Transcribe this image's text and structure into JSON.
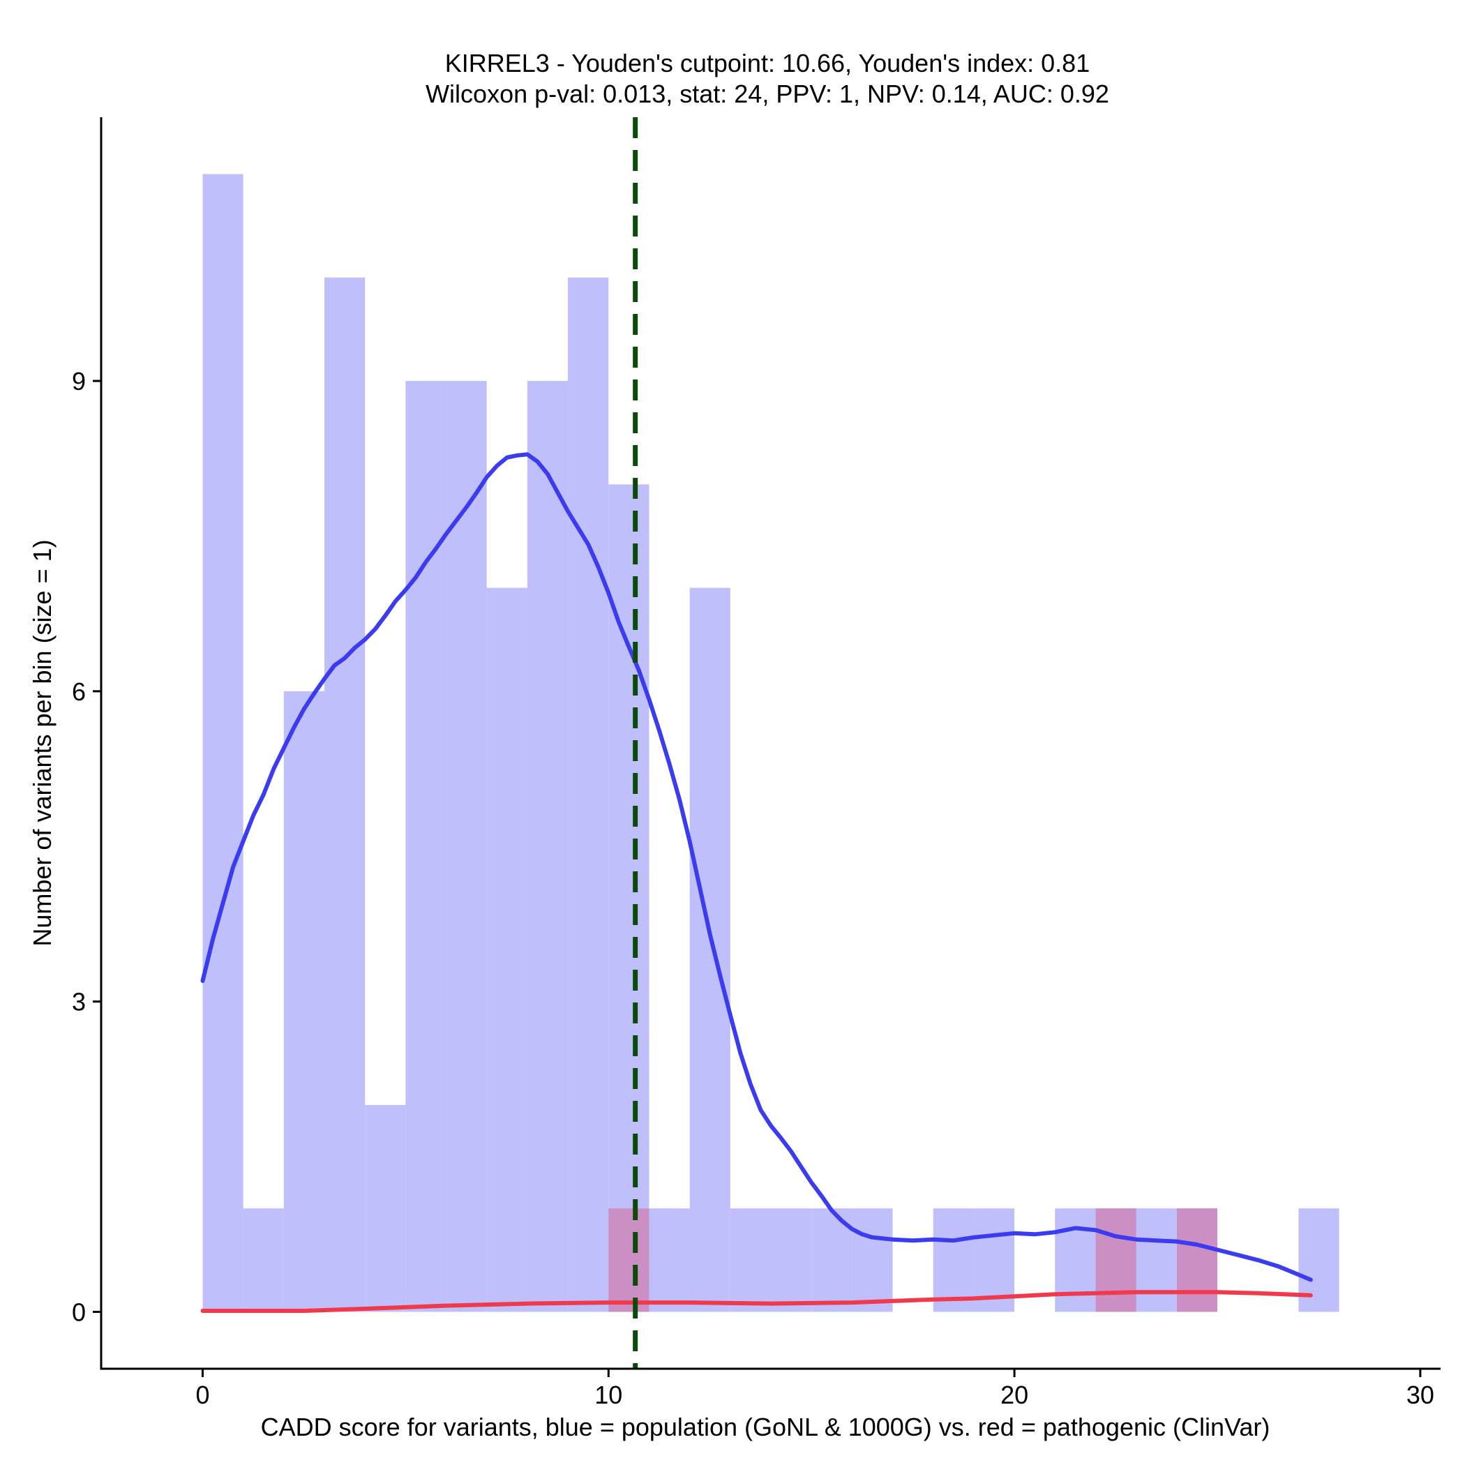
{
  "chart_data": {
    "type": "bar",
    "title_line1": "KIRREL3 - Youden's cutpoint: 10.66, Youden's index: 0.81",
    "title_line2": "Wilcoxon p-val: 0.013, stat: 24, PPV: 1, NPV: 0.14, AUC: 0.92",
    "xlabel": "CADD score for variants, blue = population (GoNL & 1000G) vs. red = pathogenic (ClinVar)",
    "ylabel": "Number of variants per bin (size = 1)",
    "xlim": [
      -2.5,
      30.5
    ],
    "ylim": [
      -0.55,
      11.55
    ],
    "x_ticks": [
      0,
      10,
      20,
      30
    ],
    "y_ticks": [
      0,
      3,
      6,
      9
    ],
    "bin_width": 1,
    "cutpoint": 10.66,
    "colors": {
      "population_fill": "#bfbffc",
      "pathogenic_fill": "#cc8fc4",
      "population_line": "#3b3bf0",
      "pathogenic_line": "#f03a4c",
      "cutpoint_line": "#0b4a0b"
    },
    "series": [
      {
        "name": "population (GoNL & 1000G)",
        "bins": [
          {
            "start": 0,
            "count": 11
          },
          {
            "start": 1,
            "count": 1
          },
          {
            "start": 2,
            "count": 6
          },
          {
            "start": 3,
            "count": 10
          },
          {
            "start": 4,
            "count": 2
          },
          {
            "start": 5,
            "count": 9
          },
          {
            "start": 6,
            "count": 9
          },
          {
            "start": 7,
            "count": 7
          },
          {
            "start": 8,
            "count": 9
          },
          {
            "start": 9,
            "count": 10
          },
          {
            "start": 10,
            "count": 8
          },
          {
            "start": 11,
            "count": 1
          },
          {
            "start": 12,
            "count": 7
          },
          {
            "start": 13,
            "count": 1
          },
          {
            "start": 14,
            "count": 1
          },
          {
            "start": 15,
            "count": 1
          },
          {
            "start": 16,
            "count": 1
          },
          {
            "start": 17,
            "count": 0
          },
          {
            "start": 18,
            "count": 1
          },
          {
            "start": 19,
            "count": 1
          },
          {
            "start": 20,
            "count": 0
          },
          {
            "start": 21,
            "count": 1
          },
          {
            "start": 22,
            "count": 1
          },
          {
            "start": 23,
            "count": 1
          },
          {
            "start": 24,
            "count": 1
          },
          {
            "start": 25,
            "count": 0
          },
          {
            "start": 26,
            "count": 0
          },
          {
            "start": 27,
            "count": 1
          }
        ],
        "density": [
          [
            0,
            3.2
          ],
          [
            0.25,
            3.6
          ],
          [
            0.5,
            3.95
          ],
          [
            0.75,
            4.3
          ],
          [
            1,
            4.55
          ],
          [
            1.25,
            4.8
          ],
          [
            1.5,
            5.0
          ],
          [
            1.75,
            5.25
          ],
          [
            2,
            5.45
          ],
          [
            2.25,
            5.65
          ],
          [
            2.5,
            5.83
          ],
          [
            2.75,
            5.98
          ],
          [
            3,
            6.12
          ],
          [
            3.25,
            6.25
          ],
          [
            3.5,
            6.32
          ],
          [
            3.75,
            6.42
          ],
          [
            4,
            6.5
          ],
          [
            4.25,
            6.6
          ],
          [
            4.5,
            6.73
          ],
          [
            4.75,
            6.87
          ],
          [
            5,
            6.98
          ],
          [
            5.25,
            7.1
          ],
          [
            5.5,
            7.25
          ],
          [
            5.75,
            7.38
          ],
          [
            6,
            7.52
          ],
          [
            6.25,
            7.65
          ],
          [
            6.5,
            7.78
          ],
          [
            6.75,
            7.92
          ],
          [
            7,
            8.07
          ],
          [
            7.25,
            8.18
          ],
          [
            7.5,
            8.26
          ],
          [
            7.75,
            8.28
          ],
          [
            8,
            8.29
          ],
          [
            8.25,
            8.22
          ],
          [
            8.5,
            8.1
          ],
          [
            8.75,
            7.92
          ],
          [
            9,
            7.74
          ],
          [
            9.25,
            7.58
          ],
          [
            9.5,
            7.42
          ],
          [
            9.75,
            7.2
          ],
          [
            10,
            6.95
          ],
          [
            10.25,
            6.67
          ],
          [
            10.5,
            6.43
          ],
          [
            10.75,
            6.2
          ],
          [
            11,
            5.92
          ],
          [
            11.25,
            5.62
          ],
          [
            11.5,
            5.3
          ],
          [
            11.75,
            4.95
          ],
          [
            12,
            4.55
          ],
          [
            12.25,
            4.1
          ],
          [
            12.5,
            3.65
          ],
          [
            12.75,
            3.25
          ],
          [
            13,
            2.87
          ],
          [
            13.25,
            2.5
          ],
          [
            13.5,
            2.2
          ],
          [
            13.75,
            1.95
          ],
          [
            14,
            1.8
          ],
          [
            14.25,
            1.68
          ],
          [
            14.5,
            1.55
          ],
          [
            14.75,
            1.4
          ],
          [
            15,
            1.25
          ],
          [
            15.25,
            1.12
          ],
          [
            15.5,
            0.98
          ],
          [
            15.75,
            0.88
          ],
          [
            16,
            0.8
          ],
          [
            16.25,
            0.75
          ],
          [
            16.5,
            0.72
          ],
          [
            17,
            0.7
          ],
          [
            17.5,
            0.69
          ],
          [
            18,
            0.7
          ],
          [
            18.5,
            0.69
          ],
          [
            19,
            0.72
          ],
          [
            19.5,
            0.74
          ],
          [
            20,
            0.76
          ],
          [
            20.5,
            0.75
          ],
          [
            21,
            0.77
          ],
          [
            21.5,
            0.81
          ],
          [
            22,
            0.79
          ],
          [
            22.5,
            0.73
          ],
          [
            23,
            0.7
          ],
          [
            23.5,
            0.69
          ],
          [
            24,
            0.68
          ],
          [
            24.5,
            0.65
          ],
          [
            25,
            0.6
          ],
          [
            25.5,
            0.55
          ],
          [
            26,
            0.5
          ],
          [
            26.5,
            0.44
          ],
          [
            27,
            0.36
          ],
          [
            27.3,
            0.31
          ]
        ]
      },
      {
        "name": "pathogenic (ClinVar)",
        "bins": [
          {
            "start": 10,
            "count": 1
          },
          {
            "start": 22,
            "count": 1
          },
          {
            "start": 24,
            "count": 1
          }
        ],
        "density": [
          [
            0,
            0.01
          ],
          [
            1,
            0.01
          ],
          [
            2,
            0.01
          ],
          [
            2.5,
            0.01
          ],
          [
            4,
            0.03
          ],
          [
            6,
            0.06
          ],
          [
            8,
            0.08
          ],
          [
            10,
            0.09
          ],
          [
            12,
            0.09
          ],
          [
            14,
            0.08
          ],
          [
            16,
            0.09
          ],
          [
            18,
            0.12
          ],
          [
            19,
            0.13
          ],
          [
            20,
            0.15
          ],
          [
            21,
            0.17
          ],
          [
            22,
            0.18
          ],
          [
            23,
            0.19
          ],
          [
            24,
            0.19
          ],
          [
            25,
            0.19
          ],
          [
            26,
            0.18
          ],
          [
            27.3,
            0.16
          ]
        ]
      }
    ]
  }
}
